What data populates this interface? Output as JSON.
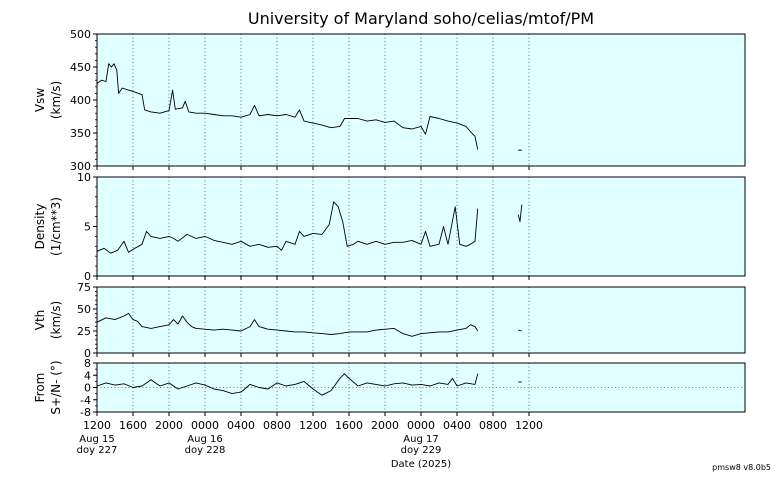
{
  "title": "University of Maryland  soho/celias/mtof/PM",
  "xlabel": "Date (2025)",
  "version": "pmsw8 v8.0b5",
  "colors": {
    "panel_bg": "#e0ffff",
    "line": "#000000",
    "grid": "#555555"
  },
  "chart_data": {
    "type": "line",
    "x_range_hours": [
      0,
      72
    ],
    "x_ticks": [
      {
        "h": 0,
        "label": "1200",
        "date": "Aug 15",
        "doy": "doy 227"
      },
      {
        "h": 4,
        "label": "1600"
      },
      {
        "h": 8,
        "label": "2000"
      },
      {
        "h": 12,
        "label": "0000",
        "date": "Aug 16",
        "doy": "doy 228"
      },
      {
        "h": 16,
        "label": "0400"
      },
      {
        "h": 20,
        "label": "0800"
      },
      {
        "h": 24,
        "label": "1200"
      },
      {
        "h": 28,
        "label": "1600"
      },
      {
        "h": 32,
        "label": "2000"
      },
      {
        "h": 36,
        "label": "0000",
        "date": "Aug 17",
        "doy": "doy 229"
      },
      {
        "h": 40,
        "label": "0400"
      },
      {
        "h": 44,
        "label": "0800"
      },
      {
        "h": 48,
        "label": "1200"
      }
    ],
    "panels": [
      {
        "id": "vsw",
        "ylabel": "Vsw",
        "ylabel2": "(km/s)",
        "ylim": [
          300,
          500
        ],
        "yticks": [
          300,
          350,
          400,
          450,
          500
        ],
        "minor_step": 10,
        "zero_line": false,
        "segments": [
          [
            [
              0,
              425
            ],
            [
              0.5,
              430
            ],
            [
              1,
              428
            ],
            [
              1.3,
              455
            ],
            [
              1.6,
              450
            ],
            [
              1.9,
              455
            ],
            [
              2.2,
              445
            ],
            [
              2.4,
              410
            ],
            [
              2.8,
              418
            ],
            [
              3.5,
              415
            ],
            [
              4.2,
              412
            ],
            [
              5,
              408
            ],
            [
              5.3,
              385
            ],
            [
              6,
              382
            ],
            [
              7,
              380
            ],
            [
              8,
              384
            ],
            [
              8.4,
              415
            ],
            [
              8.7,
              386
            ],
            [
              9.5,
              388
            ],
            [
              9.8,
              398
            ],
            [
              10.2,
              382
            ],
            [
              11,
              380
            ],
            [
              12,
              380
            ],
            [
              13,
              378
            ],
            [
              14,
              376
            ],
            [
              15,
              376
            ],
            [
              16,
              374
            ],
            [
              17,
              378
            ],
            [
              17.5,
              392
            ],
            [
              18,
              376
            ],
            [
              19,
              378
            ],
            [
              20,
              376
            ],
            [
              21,
              378
            ],
            [
              22,
              374
            ],
            [
              22.5,
              385
            ],
            [
              23,
              368
            ],
            [
              24,
              365
            ],
            [
              25,
              362
            ],
            [
              26,
              358
            ],
            [
              27,
              360
            ],
            [
              27.5,
              372
            ],
            [
              28,
              372
            ],
            [
              29,
              372
            ],
            [
              30,
              368
            ],
            [
              31,
              370
            ],
            [
              32,
              366
            ],
            [
              33,
              368
            ],
            [
              34,
              358
            ],
            [
              35,
              356
            ],
            [
              36,
              360
            ],
            [
              36.5,
              348
            ],
            [
              37,
              375
            ],
            [
              38,
              372
            ],
            [
              39,
              368
            ],
            [
              40,
              365
            ],
            [
              41,
              360
            ],
            [
              41.5,
              352
            ],
            [
              42,
              345
            ],
            [
              42.3,
              325
            ]
          ],
          [
            [
              46.8,
              324
            ],
            [
              47.2,
              324
            ]
          ]
        ]
      },
      {
        "id": "density",
        "ylabel": "Density",
        "ylabel2": "(1/cm**3)",
        "ylim": [
          0,
          10
        ],
        "yticks": [
          0,
          5,
          10
        ],
        "minor_step": 1,
        "zero_line": false,
        "segments": [
          [
            [
              0,
              2.5
            ],
            [
              0.8,
              2.8
            ],
            [
              1.5,
              2.3
            ],
            [
              2.3,
              2.6
            ],
            [
              3,
              3.5
            ],
            [
              3.5,
              2.4
            ],
            [
              4.2,
              2.8
            ],
            [
              5,
              3.2
            ],
            [
              5.5,
              4.5
            ],
            [
              6,
              4.0
            ],
            [
              7,
              3.8
            ],
            [
              8,
              4.0
            ],
            [
              8.5,
              3.8
            ],
            [
              9,
              3.5
            ],
            [
              10,
              4.2
            ],
            [
              11,
              3.8
            ],
            [
              12,
              4.0
            ],
            [
              13,
              3.6
            ],
            [
              14,
              3.4
            ],
            [
              15,
              3.2
            ],
            [
              16,
              3.5
            ],
            [
              17,
              3.0
            ],
            [
              18,
              3.2
            ],
            [
              19,
              2.9
            ],
            [
              20,
              3.0
            ],
            [
              20.5,
              2.6
            ],
            [
              21,
              3.5
            ],
            [
              22,
              3.2
            ],
            [
              22.5,
              4.5
            ],
            [
              23,
              4.0
            ],
            [
              24,
              4.3
            ],
            [
              25,
              4.2
            ],
            [
              25.8,
              5.2
            ],
            [
              26.3,
              7.5
            ],
            [
              26.8,
              7.0
            ],
            [
              27.3,
              5.5
            ],
            [
              27.8,
              3.0
            ],
            [
              28.5,
              3.2
            ],
            [
              29,
              3.5
            ],
            [
              30,
              3.2
            ],
            [
              31,
              3.5
            ],
            [
              32,
              3.2
            ],
            [
              33,
              3.4
            ],
            [
              34,
              3.4
            ],
            [
              35,
              3.6
            ],
            [
              36,
              3.2
            ],
            [
              36.5,
              4.5
            ],
            [
              37,
              3.0
            ],
            [
              38,
              3.2
            ],
            [
              38.5,
              5.0
            ],
            [
              39,
              3.2
            ],
            [
              39.8,
              7.0
            ],
            [
              40.3,
              3.2
            ],
            [
              41,
              3.0
            ],
            [
              41.5,
              3.2
            ],
            [
              42,
              3.5
            ],
            [
              42.3,
              6.8
            ]
          ],
          [
            [
              46.8,
              6.2
            ],
            [
              47,
              5.5
            ],
            [
              47.2,
              7.2
            ]
          ]
        ]
      },
      {
        "id": "vth",
        "ylabel": "Vth",
        "ylabel2": "(km/s)",
        "ylim": [
          0,
          75
        ],
        "yticks": [
          0,
          25,
          50,
          75
        ],
        "minor_step": 5,
        "zero_line": false,
        "segments": [
          [
            [
              0,
              35
            ],
            [
              1,
              40
            ],
            [
              2,
              38
            ],
            [
              3,
              42
            ],
            [
              3.5,
              45
            ],
            [
              4,
              38
            ],
            [
              4.5,
              36
            ],
            [
              5,
              30
            ],
            [
              6,
              28
            ],
            [
              7,
              30
            ],
            [
              8,
              32
            ],
            [
              8.5,
              38
            ],
            [
              9,
              33
            ],
            [
              9.5,
              42
            ],
            [
              10,
              35
            ],
            [
              10.5,
              30
            ],
            [
              11,
              28
            ],
            [
              12,
              27
            ],
            [
              13,
              26
            ],
            [
              14,
              27
            ],
            [
              15,
              26
            ],
            [
              16,
              25
            ],
            [
              17,
              30
            ],
            [
              17.5,
              38
            ],
            [
              18,
              30
            ],
            [
              19,
              27
            ],
            [
              20,
              26
            ],
            [
              21,
              25
            ],
            [
              22,
              24
            ],
            [
              23,
              24
            ],
            [
              24,
              23
            ],
            [
              25,
              22
            ],
            [
              26,
              21
            ],
            [
              27,
              22
            ],
            [
              28,
              24
            ],
            [
              29,
              24
            ],
            [
              30,
              24
            ],
            [
              31,
              26
            ],
            [
              32,
              27
            ],
            [
              33,
              28
            ],
            [
              34,
              22
            ],
            [
              35,
              19
            ],
            [
              36,
              22
            ],
            [
              37,
              23
            ],
            [
              38,
              24
            ],
            [
              39,
              24
            ],
            [
              40,
              26
            ],
            [
              41,
              28
            ],
            [
              41.5,
              32
            ],
            [
              42,
              30
            ],
            [
              42.3,
              25
            ]
          ],
          [
            [
              46.8,
              26
            ],
            [
              47.2,
              25
            ]
          ]
        ]
      },
      {
        "id": "from",
        "ylabel": "From",
        "ylabel2": "S+/N- (°)",
        "ylim": [
          -8,
          8
        ],
        "yticks": [
          -8,
          -4,
          0,
          4,
          8
        ],
        "minor_step": 2,
        "zero_line": true,
        "segments": [
          [
            [
              0,
              0.5
            ],
            [
              1,
              1.5
            ],
            [
              2,
              0.8
            ],
            [
              3,
              1.2
            ],
            [
              4,
              0
            ],
            [
              5,
              0.5
            ],
            [
              6,
              2.5
            ],
            [
              7,
              0.5
            ],
            [
              8,
              1.5
            ],
            [
              9,
              -0.5
            ],
            [
              10,
              0.5
            ],
            [
              11,
              1.5
            ],
            [
              12,
              0.8
            ],
            [
              13,
              -0.5
            ],
            [
              14,
              -1.0
            ],
            [
              15,
              -2.0
            ],
            [
              16,
              -1.5
            ],
            [
              17,
              1.0
            ],
            [
              18,
              0
            ],
            [
              19,
              -0.5
            ],
            [
              20,
              1.5
            ],
            [
              21,
              0.5
            ],
            [
              22,
              1.0
            ],
            [
              23,
              2.0
            ],
            [
              24,
              -0.5
            ],
            [
              25,
              -2.5
            ],
            [
              26,
              -1.0
            ],
            [
              27,
              3.0
            ],
            [
              27.5,
              4.5
            ],
            [
              28,
              3.0
            ],
            [
              29,
              0.5
            ],
            [
              30,
              1.5
            ],
            [
              31,
              1.0
            ],
            [
              32,
              0.5
            ],
            [
              33,
              1.2
            ],
            [
              34,
              1.5
            ],
            [
              35,
              0.8
            ],
            [
              36,
              1.0
            ],
            [
              37,
              0.5
            ],
            [
              38,
              1.5
            ],
            [
              39,
              1.0
            ],
            [
              39.5,
              3.0
            ],
            [
              40,
              0.5
            ],
            [
              41,
              1.5
            ],
            [
              42,
              1.0
            ],
            [
              42.3,
              4.5
            ]
          ],
          [
            [
              46.8,
              1.8
            ],
            [
              47.2,
              1.8
            ]
          ]
        ]
      }
    ]
  }
}
